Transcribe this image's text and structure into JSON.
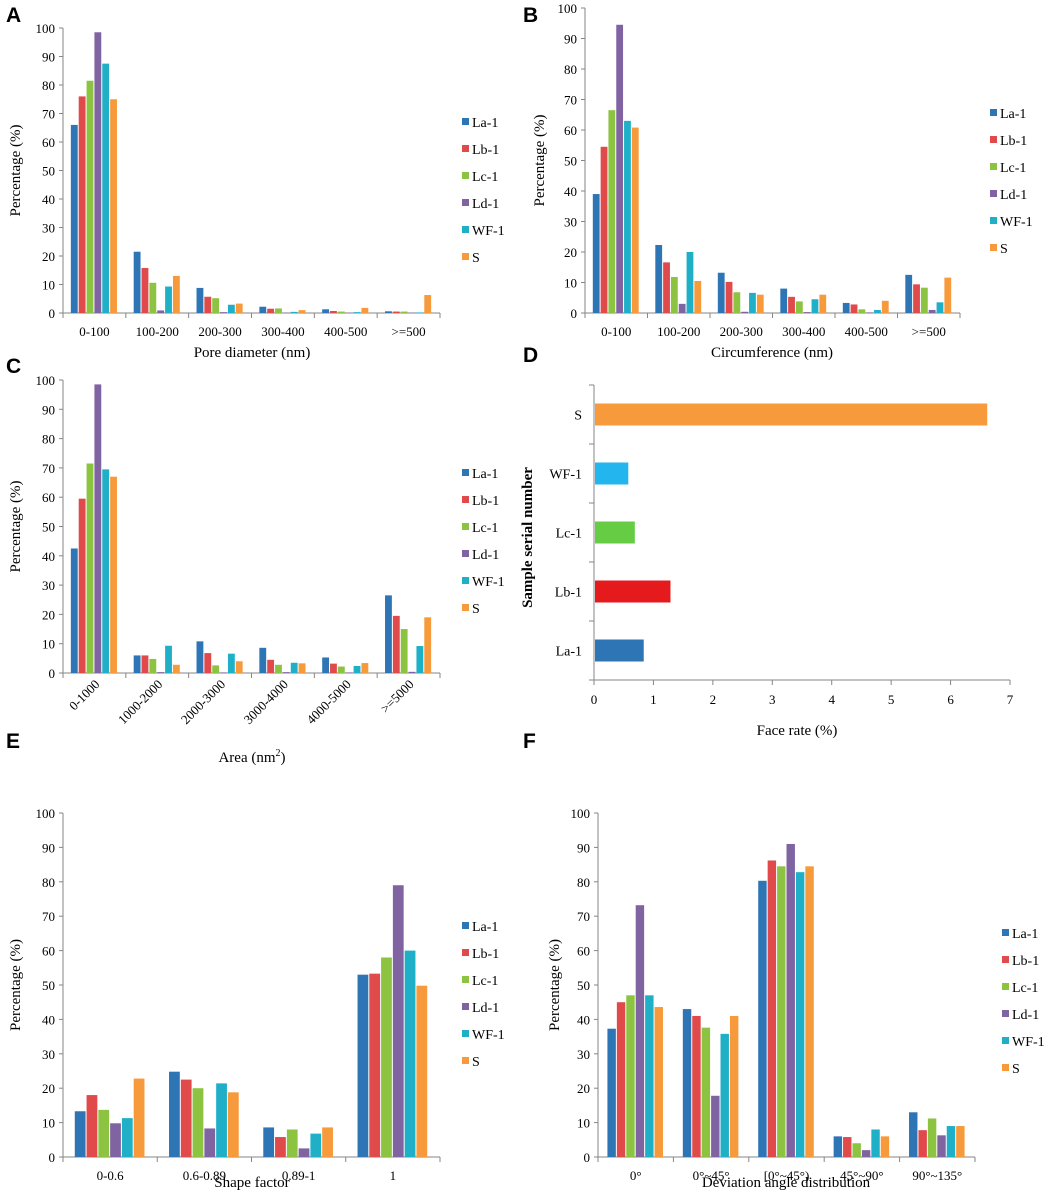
{
  "figure": {
    "legend_labels": [
      "La-1",
      "Lb-1",
      "Lc-1",
      "Ld-1",
      "WF-1",
      "S"
    ],
    "series_colors": [
      "#2e75b6",
      "#e04a4a",
      "#8cc441",
      "#8064a2",
      "#1fb0c8",
      "#f79a3c"
    ]
  },
  "chart_data": [
    {
      "panel": "A",
      "type": "bar",
      "title": "",
      "xlabel": "Pore diameter (nm)",
      "ylabel": "Percentage (%)",
      "ylim": [
        0,
        100
      ],
      "yticks": [
        "0",
        "10",
        "20",
        "30",
        "40",
        "50",
        "60",
        "70",
        "80",
        "90",
        "100"
      ],
      "categories": [
        "0-100",
        "100-200",
        "200-300",
        "300-400",
        "400-500",
        ">=500"
      ],
      "series": [
        {
          "name": "La-1",
          "values": [
            66,
            21.5,
            8.8,
            2.2,
            1.3,
            0.6
          ]
        },
        {
          "name": "Lb-1",
          "values": [
            76,
            15.8,
            5.7,
            1.5,
            0.7,
            0.5
          ]
        },
        {
          "name": "Lc-1",
          "values": [
            81.5,
            10.6,
            5.2,
            1.6,
            0.5,
            0.5
          ]
        },
        {
          "name": "Ld-1",
          "values": [
            98.5,
            0.9,
            0.3,
            0.1,
            0.1,
            0.1
          ]
        },
        {
          "name": "WF-1",
          "values": [
            87.5,
            9.3,
            2.9,
            0.4,
            0.3,
            0.2
          ]
        },
        {
          "name": "S",
          "values": [
            75,
            13,
            3.3,
            1,
            1.8,
            6.3
          ]
        }
      ]
    },
    {
      "panel": "B",
      "type": "bar",
      "title": "",
      "xlabel": "Circumference (nm)",
      "ylabel": "Percentage (%)",
      "ylim": [
        0,
        100
      ],
      "yticks": [
        "0",
        "10",
        "20",
        "30",
        "40",
        "50",
        "60",
        "70",
        "80",
        "90",
        "100"
      ],
      "categories": [
        "0-100",
        "100-200",
        "200-300",
        "300-400",
        "400-500",
        ">=500"
      ],
      "series": [
        {
          "name": "La-1",
          "values": [
            39,
            22.3,
            13.2,
            8,
            3.3,
            12.5
          ]
        },
        {
          "name": "Lb-1",
          "values": [
            54.5,
            16.6,
            10.2,
            5.3,
            2.8,
            9.4
          ]
        },
        {
          "name": "Lc-1",
          "values": [
            66.5,
            11.8,
            6.8,
            3.8,
            1.2,
            8.3
          ]
        },
        {
          "name": "Ld-1",
          "values": [
            94.5,
            3,
            0.4,
            0.3,
            0.2,
            1
          ]
        },
        {
          "name": "WF-1",
          "values": [
            63,
            20,
            6.6,
            4.5,
            1,
            3.5
          ]
        },
        {
          "name": "S",
          "values": [
            60.8,
            10.5,
            6,
            6,
            4,
            11.6
          ]
        }
      ]
    },
    {
      "panel": "C",
      "type": "bar",
      "title": "",
      "xlabel": "Area (nm",
      "xlabel_superscript": "2",
      "xlabel_close": ")",
      "ylabel": "Percentage (%)",
      "ylim": [
        0,
        100
      ],
      "yticks": [
        "0",
        "10",
        "20",
        "30",
        "40",
        "50",
        "60",
        "70",
        "80",
        "90",
        "100"
      ],
      "categories": [
        "0-1000",
        "1000-2000",
        "2000-3000",
        "3000-4000",
        "4000-5000",
        ">=5000"
      ],
      "series": [
        {
          "name": "La-1",
          "values": [
            42.5,
            6,
            10.8,
            8.6,
            5.3,
            26.5
          ]
        },
        {
          "name": "Lb-1",
          "values": [
            59.5,
            6,
            6.8,
            4.5,
            3.2,
            19.5
          ]
        },
        {
          "name": "Lc-1",
          "values": [
            71.5,
            4.8,
            2.6,
            2.8,
            2.2,
            15
          ]
        },
        {
          "name": "Ld-1",
          "values": [
            98.5,
            0.3,
            0.2,
            0.3,
            0.2,
            0.4
          ]
        },
        {
          "name": "WF-1",
          "values": [
            69.5,
            9.3,
            6.6,
            3.5,
            2.4,
            9.2
          ]
        },
        {
          "name": "S",
          "values": [
            67,
            2.8,
            4,
            3.3,
            3.4,
            19
          ]
        }
      ]
    },
    {
      "panel": "D",
      "type": "bar",
      "orientation": "horizontal",
      "title": "",
      "xlabel": "Face rate (%)",
      "ylabel": "Sample serial number",
      "xlim": [
        0,
        7
      ],
      "xticks": [
        "0",
        "1",
        "2",
        "3",
        "4",
        "5",
        "6",
        "7"
      ],
      "categories": [
        "La-1",
        "Lb-1",
        "Lc-1",
        "WF-1",
        "S"
      ],
      "values": [
        0.82,
        1.27,
        0.67,
        0.56,
        6.6
      ],
      "colors": [
        "#2e75b6",
        "#e41a1c",
        "#66cc44",
        "#22b5ee",
        "#f79a3c"
      ]
    },
    {
      "panel": "E",
      "type": "bar",
      "title": "",
      "xlabel": "Shape factor",
      "ylabel": "Percentage (%)",
      "ylim": [
        0,
        100
      ],
      "yticks": [
        "0",
        "10",
        "20",
        "30",
        "40",
        "50",
        "60",
        "70",
        "80",
        "90",
        "100"
      ],
      "categories": [
        "0-0.6",
        "0.6-0.89",
        "0.89-1",
        "1"
      ],
      "series": [
        {
          "name": "La-1",
          "values": [
            13.3,
            24.8,
            8.6,
            53
          ]
        },
        {
          "name": "Lb-1",
          "values": [
            18,
            22.5,
            5.8,
            53.3
          ]
        },
        {
          "name": "Lc-1",
          "values": [
            13.7,
            20,
            8,
            58
          ]
        },
        {
          "name": "Ld-1",
          "values": [
            9.8,
            8.3,
            2.5,
            79
          ]
        },
        {
          "name": "WF-1",
          "values": [
            11.3,
            21.4,
            6.8,
            60
          ]
        },
        {
          "name": "S",
          "values": [
            22.8,
            18.8,
            8.6,
            49.8
          ]
        }
      ]
    },
    {
      "panel": "F",
      "type": "bar",
      "title": "",
      "xlabel": "Deviation angle distribution",
      "ylabel": "Percentage (%)",
      "ylim": [
        0,
        100
      ],
      "yticks": [
        "0",
        "10",
        "20",
        "30",
        "40",
        "50",
        "60",
        "70",
        "80",
        "90",
        "100"
      ],
      "categories": [
        "0°",
        "0°~45°",
        "[0°~45°)",
        "45°~90°",
        "90°~135°"
      ],
      "series": [
        {
          "name": "La-1",
          "values": [
            37.3,
            43,
            80.3,
            6,
            13
          ]
        },
        {
          "name": "Lb-1",
          "values": [
            45,
            41,
            86.2,
            5.8,
            7.8
          ]
        },
        {
          "name": "Lc-1",
          "values": [
            47,
            37.6,
            84.5,
            4,
            11.2
          ]
        },
        {
          "name": "Ld-1",
          "values": [
            73.2,
            17.8,
            91,
            2,
            6.3
          ]
        },
        {
          "name": "WF-1",
          "values": [
            47,
            35.8,
            82.8,
            8,
            9
          ]
        },
        {
          "name": "S",
          "values": [
            43.6,
            41,
            84.5,
            6,
            9
          ]
        }
      ]
    }
  ]
}
